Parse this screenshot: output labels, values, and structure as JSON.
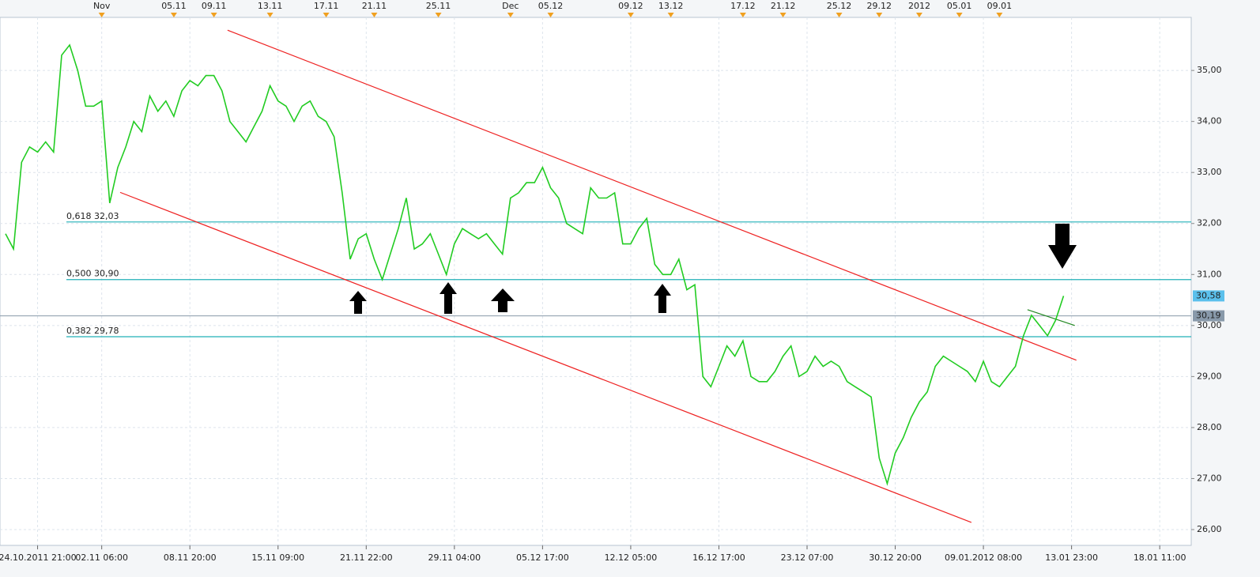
{
  "chart_data": {
    "type": "line",
    "categories": [
      null,
      null,
      null,
      null,
      "24.10.2011 21:00",
      null,
      null,
      null,
      null,
      null,
      null,
      null,
      "02.11 06:00",
      null,
      null,
      null,
      null,
      null,
      null,
      null,
      null,
      null,
      null,
      "08.11 20:00",
      null,
      null,
      null,
      null,
      null,
      null,
      null,
      null,
      null,
      null,
      "15.11 09:00",
      null,
      null,
      null,
      null,
      null,
      null,
      null,
      null,
      null,
      null,
      "21.11 22:00",
      null,
      null,
      null,
      null,
      null,
      null,
      null,
      null,
      null,
      null,
      "29.11 04:00",
      null,
      null,
      null,
      null,
      null,
      null,
      null,
      null,
      null,
      null,
      "05.12 17:00",
      null,
      null,
      null,
      null,
      null,
      null,
      null,
      null,
      null,
      null,
      "12.12 05:00",
      null,
      null,
      null,
      null,
      null,
      null,
      null,
      null,
      null,
      null,
      "16.12 17:00",
      null,
      null,
      null,
      null,
      null,
      null,
      null,
      null,
      null,
      null,
      "23.12 07:00",
      null,
      null,
      null,
      null,
      null,
      null,
      null,
      null,
      null,
      null,
      "30.12 20:00",
      null,
      null,
      null,
      null,
      null,
      null,
      null,
      null,
      null,
      null,
      "09.01.2012 08:00",
      null,
      null,
      null,
      null,
      null,
      null,
      null,
      null,
      null,
      null,
      "13.01 23:00",
      null,
      null,
      null,
      null,
      null,
      null,
      null,
      null,
      null,
      null,
      "18.01 11:00",
      null
    ],
    "top_categories": [
      null,
      null,
      null,
      null,
      null,
      null,
      null,
      null,
      null,
      null,
      null,
      null,
      "Nov",
      null,
      null,
      null,
      null,
      null,
      null,
      null,
      null,
      "05.11",
      null,
      null,
      null,
      null,
      "09.11",
      null,
      null,
      null,
      null,
      null,
      null,
      "13.11",
      null,
      null,
      null,
      null,
      null,
      null,
      "17.11",
      null,
      null,
      null,
      null,
      null,
      "21.11",
      null,
      null,
      null,
      null,
      null,
      null,
      null,
      "25.11",
      null,
      null,
      null,
      null,
      null,
      null,
      null,
      null,
      "Dec",
      null,
      null,
      null,
      null,
      "05.12",
      null,
      null,
      null,
      null,
      null,
      null,
      null,
      null,
      null,
      "09.12",
      null,
      null,
      null,
      null,
      "13.12",
      null,
      null,
      null,
      null,
      null,
      null,
      null,
      null,
      "17.12",
      null,
      null,
      null,
      null,
      "21.12",
      null,
      null,
      null,
      null,
      null,
      null,
      "25.12",
      null,
      null,
      null,
      null,
      "29.12",
      null,
      null,
      null,
      null,
      "2012",
      null,
      null,
      null,
      null,
      "05.01",
      null,
      null,
      null,
      null,
      "09.01",
      null,
      null,
      null,
      null,
      null,
      null,
      null,
      null,
      null,
      null,
      null,
      null,
      null,
      null,
      null,
      null,
      null,
      null,
      null,
      null,
      null
    ],
    "series": [
      {
        "color": "#22cc22",
        "values": [
          31.8,
          31.5,
          33.2,
          33.5,
          33.4,
          33.6,
          33.4,
          35.3,
          35.5,
          35.0,
          34.3,
          34.3,
          34.4,
          32.4,
          33.1,
          33.5,
          34.0,
          33.8,
          34.5,
          34.2,
          34.4,
          34.1,
          34.6,
          34.8,
          34.7,
          34.9,
          34.9,
          34.6,
          34.0,
          33.8,
          33.6,
          33.9,
          34.2,
          34.7,
          34.4,
          34.3,
          34.0,
          34.3,
          34.4,
          34.1,
          34.0,
          33.7,
          32.6,
          31.3,
          31.7,
          31.8,
          31.3,
          30.9,
          31.4,
          31.9,
          32.5,
          31.5,
          31.6,
          31.8,
          31.4,
          31.0,
          31.6,
          31.9,
          31.8,
          31.7,
          31.8,
          31.6,
          31.4,
          32.5,
          32.6,
          32.8,
          32.8,
          33.1,
          32.7,
          32.5,
          32.0,
          31.9,
          31.8,
          32.7,
          32.5,
          32.5,
          32.6,
          31.6,
          31.6,
          31.9,
          32.1,
          31.2,
          31.0,
          31.0,
          31.3,
          30.7,
          30.8,
          29.0,
          28.8,
          29.2,
          29.6,
          29.4,
          29.7,
          29.0,
          28.9,
          28.9,
          29.1,
          29.4,
          29.6,
          29.0,
          29.1,
          29.4,
          29.2,
          29.3,
          29.2,
          28.9,
          28.8,
          28.7,
          28.6,
          27.4,
          26.9,
          27.5,
          27.8,
          28.2,
          28.5,
          28.7,
          29.2,
          29.4,
          29.3,
          29.2,
          29.1,
          28.9,
          29.3,
          28.9,
          28.8,
          29.0,
          29.2,
          29.8,
          30.2,
          30.0,
          29.8,
          30.1,
          30.58,
          null,
          null,
          null,
          null,
          null,
          null,
          null,
          null,
          null,
          null,
          null,
          null,
          null
        ]
      }
    ],
    "ylim": [
      25.69,
      36.04
    ],
    "yticks": [
      {
        "value": 26,
        "label": "26,00"
      },
      {
        "value": 27,
        "label": "27,00"
      },
      {
        "value": 28,
        "label": "28,00"
      },
      {
        "value": 29,
        "label": "29,00"
      },
      {
        "value": 30,
        "label": "30,00"
      },
      {
        "value": 31,
        "label": "31,00"
      },
      {
        "value": 32,
        "label": "32,00"
      },
      {
        "value": 33,
        "label": "33,00"
      },
      {
        "value": 34,
        "label": "34,00"
      },
      {
        "value": 35,
        "label": "35,00"
      }
    ],
    "grid": true,
    "levels": [
      {
        "label": "0,618 32,03",
        "value": 32.03,
        "color": "#20b0b8"
      },
      {
        "label": "0,500 30,90",
        "value": 30.9,
        "color": "#20b0b8"
      },
      {
        "label": "0,382 29,78",
        "value": 29.78,
        "color": "#20b0b8"
      }
    ],
    "price_line": {
      "value": 30.19,
      "label": "30,19",
      "color": "#8899aa"
    },
    "last_price": {
      "value": 30.58,
      "label": "30,58",
      "color": "#5bc0ec"
    },
    "trendlines": [
      {
        "x": [
          27.7,
          133.6
        ],
        "y": [
          35.79,
          29.32
        ],
        "color": "#ee2222"
      },
      {
        "x": [
          14.3,
          120.5
        ],
        "y": [
          32.61,
          26.14
        ],
        "color": "#ee2222"
      },
      {
        "x": [
          127.5,
          133.4
        ],
        "y": [
          30.31,
          30.0
        ],
        "color": "#228822"
      }
    ]
  }
}
